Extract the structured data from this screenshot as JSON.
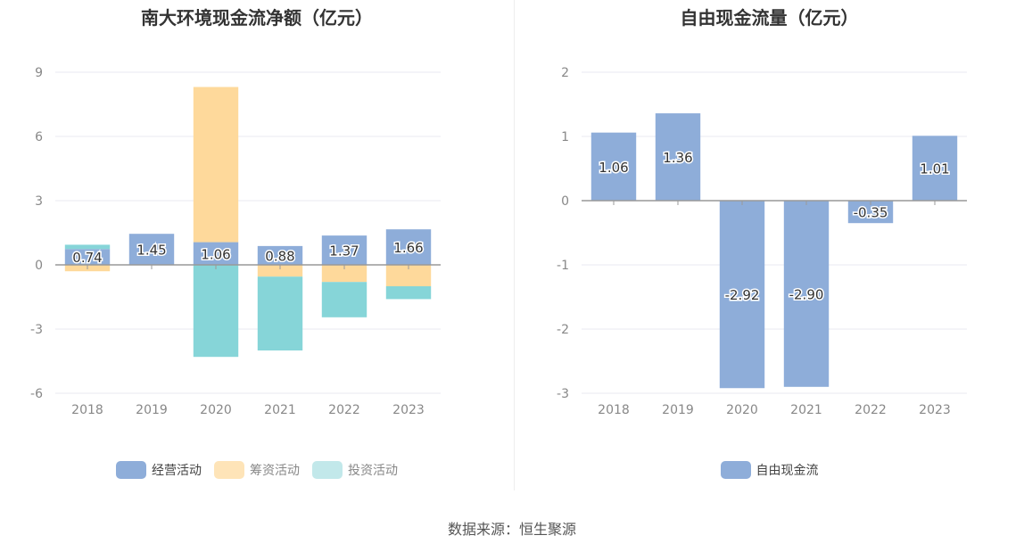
{
  "colors": {
    "operating": "#8eadd9",
    "financing": "#fed99b",
    "investing": "#86d5d8",
    "grid": "#e8eaf2",
    "axis": "#999999"
  },
  "footer": {
    "source": "数据来源：恒生聚源"
  },
  "chart_data": [
    {
      "type": "bar",
      "stacked": true,
      "title": "南大环境现金流净额（亿元）",
      "categories": [
        "2018",
        "2019",
        "2020",
        "2021",
        "2022",
        "2023"
      ],
      "ylim": [
        -6,
        9
      ],
      "yticks": [
        9,
        6,
        3,
        0,
        -3,
        -6
      ],
      "grid": true,
      "legend_position": "bottom",
      "series": [
        {
          "name": "经营活动",
          "values": [
            0.74,
            1.45,
            1.06,
            0.88,
            1.37,
            1.66
          ],
          "labels": [
            "0.74",
            "1.45",
            "1.06",
            "0.88",
            "1.37",
            "1.66"
          ]
        },
        {
          "name": "筹资活动",
          "values": [
            -0.3,
            0,
            7.25,
            -0.55,
            -0.8,
            -1.0
          ]
        },
        {
          "name": "投资活动",
          "values": [
            0.2,
            0,
            -4.3,
            -3.45,
            -1.65,
            -0.6
          ]
        }
      ]
    },
    {
      "type": "bar",
      "title": "自由现金流量（亿元）",
      "categories": [
        "2018",
        "2019",
        "2020",
        "2021",
        "2022",
        "2023"
      ],
      "ylim": [
        -3,
        2
      ],
      "yticks": [
        2,
        1,
        0,
        -1,
        -2,
        -3
      ],
      "grid": true,
      "legend_position": "bottom",
      "series": [
        {
          "name": "自由现金流",
          "values": [
            1.06,
            1.36,
            -2.92,
            -2.9,
            -0.35,
            1.01
          ],
          "labels": [
            "1.06",
            "1.36",
            "-2.92",
            "-2.90",
            "-0.35",
            "1.01"
          ]
        }
      ]
    }
  ]
}
